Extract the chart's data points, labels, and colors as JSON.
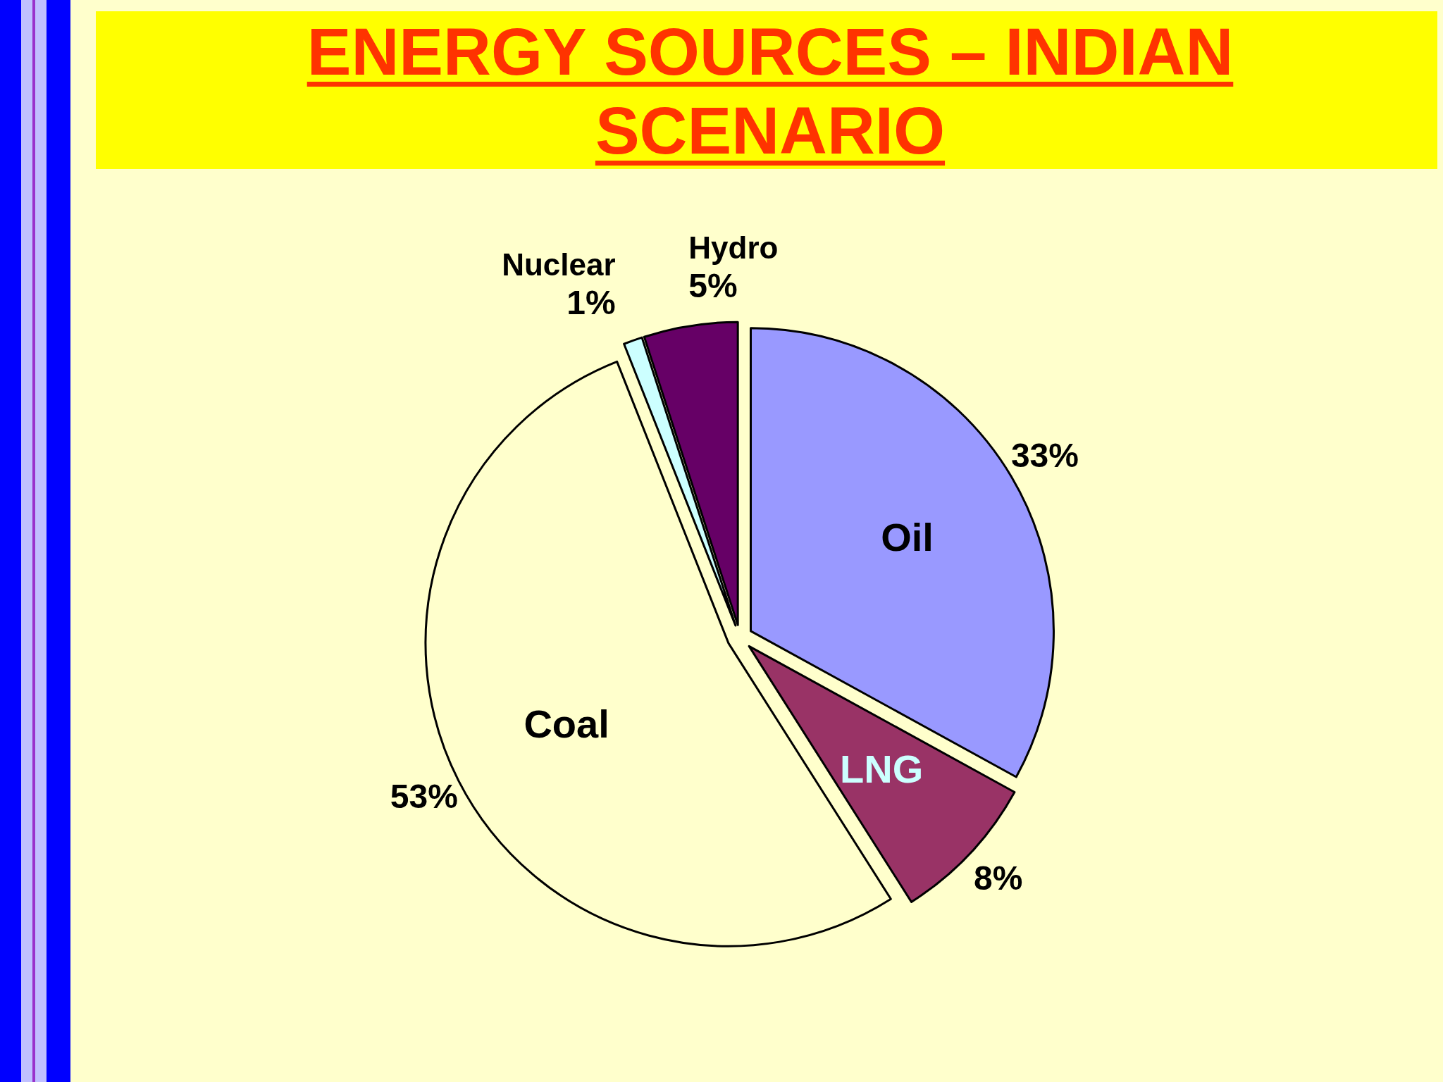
{
  "chart_data": {
    "type": "pie",
    "title": "ENERGY SOURCES – INDIAN SCENARIO",
    "categories": [
      "Oil",
      "LNG",
      "Coal",
      "Nuclear",
      "Hydro"
    ],
    "values": [
      33,
      8,
      53,
      1,
      5
    ],
    "colors": [
      "#9999ff",
      "#993366",
      "#ffffcc",
      "#ccffff",
      "#660066"
    ],
    "value_labels": [
      "33%",
      "8%",
      "53%",
      "1%",
      "5%"
    ]
  }
}
